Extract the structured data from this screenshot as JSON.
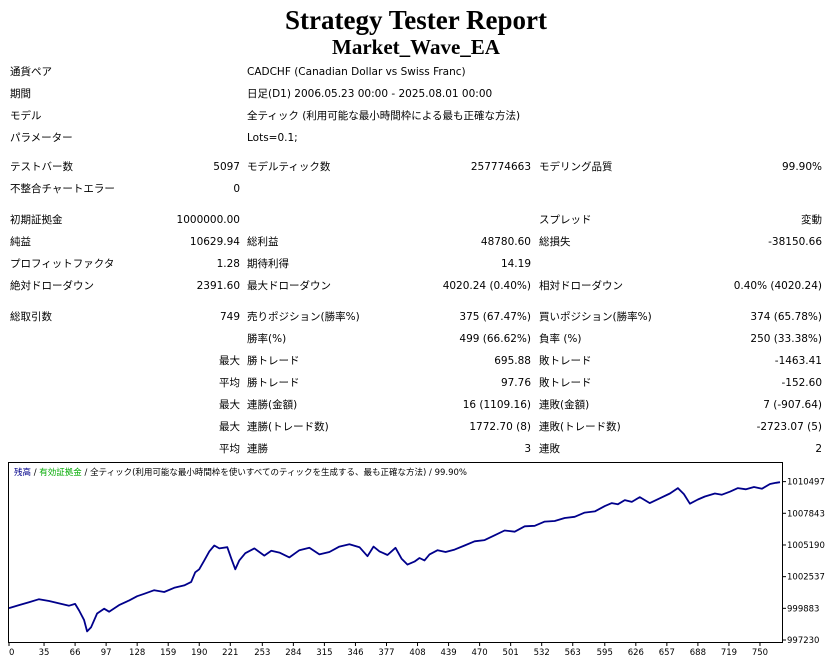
{
  "header": {
    "title": "Strategy Tester Report",
    "ea_name": "Market_Wave_EA"
  },
  "info": [
    {
      "label": "通貨ペア",
      "value": "CADCHF (Canadian Dollar vs Swiss Franc)"
    },
    {
      "label": "期間",
      "value": "日足(D1) 2006.05.23 00:00 - 2025.08.01 00:00"
    },
    {
      "label": "モデル",
      "value": "全ティック (利用可能な最小時間枠による最も正確な方法)"
    },
    {
      "label": "パラメーター",
      "value": "Lots=0.1;"
    }
  ],
  "stats": {
    "bars_label": "テストバー数",
    "bars": "5097",
    "ticks_label": "モデルティック数",
    "ticks": "257774663",
    "quality_label": "モデリング品質",
    "quality": "99.90%",
    "mismatch_label": "不整合チャートエラー",
    "mismatch": "0",
    "deposit_label": "初期証拠金",
    "deposit": "1000000.00",
    "spread_label": "スプレッド",
    "spread": "変動",
    "net_label": "純益",
    "net": "10629.94",
    "gross_profit_label": "総利益",
    "gross_profit": "48780.60",
    "gross_loss_label": "総損失",
    "gross_loss": "-38150.66",
    "pf_label": "プロフィットファクタ",
    "pf": "1.28",
    "payoff_label": "期待利得",
    "payoff": "14.19",
    "abs_dd_label": "絶対ドローダウン",
    "abs_dd": "2391.60",
    "max_dd_label": "最大ドローダウン",
    "max_dd": "4020.24 (0.40%)",
    "rel_dd_label": "相対ドローダウン",
    "rel_dd": "0.40% (4020.24)",
    "total_label": "総取引数",
    "total": "749",
    "short_label": "売りポジション(勝率%)",
    "short": "375 (67.47%)",
    "long_label": "買いポジション(勝率%)",
    "long": "374 (65.78%)",
    "win_pct_label": "勝率(%)",
    "win_pct": "499 (66.62%)",
    "loss_pct_label": "負率 (%)",
    "loss_pct": "250 (33.38%)",
    "largest_label": "最大",
    "largest_win_label": "勝トレード",
    "largest_win": "695.88",
    "largest_loss_label": "敗トレード",
    "largest_loss": "-1463.41",
    "avg_label": "平均",
    "avg_win_label": "勝トレード",
    "avg_win": "97.76",
    "avg_loss_label": "敗トレード",
    "avg_loss": "-152.60",
    "max_cons_label": "最大",
    "max_cons_win_label": "連勝(金額)",
    "max_cons_win": "16 (1109.16)",
    "max_cons_loss_label": "連敗(金額)",
    "max_cons_loss": "7 (-907.64)",
    "max_consp_label": "最大",
    "max_consp_win_label": "連勝(トレード数)",
    "max_consp_win": "1772.70 (8)",
    "max_consp_loss_label": "連敗(トレード数)",
    "max_consp_loss": "-2723.07 (5)",
    "avg_cons_label": "平均",
    "avg_cons_win_label": "連勝",
    "avg_cons_win": "3",
    "avg_cons_loss_label": "連敗",
    "avg_cons_loss": "2"
  },
  "chart_data": {
    "type": "line",
    "legend": {
      "balance": "残高",
      "sep1": " / ",
      "equity": "有効証拠金",
      "sep2": " / ",
      "model": "全ティック(利用可能な最小時間枠を使いすべてのティックを生成する、最も正確な方法)",
      "sep3": " / ",
      "quality": "99.90%"
    },
    "x_ticks": [
      0,
      35,
      66,
      97,
      128,
      159,
      190,
      221,
      253,
      284,
      315,
      346,
      377,
      408,
      439,
      470,
      501,
      532,
      563,
      595,
      626,
      657,
      688,
      719,
      750
    ],
    "y_ticks": [
      997230,
      999883,
      1002537,
      1005190,
      1007843,
      1010497
    ],
    "xlim": [
      0,
      770
    ],
    "ylim": [
      997230,
      1010800
    ],
    "colors": {
      "balance": "#00008b",
      "equity": "#00aa00",
      "axis": "#000000"
    },
    "series": [
      {
        "x": [
          0,
          10,
          20,
          30,
          40,
          50,
          60,
          66,
          70,
          75,
          78,
          82,
          88,
          95,
          100,
          110,
          120,
          128,
          135,
          145,
          155,
          165,
          175,
          182,
          186,
          190,
          195,
          200,
          205,
          210,
          218,
          222,
          226,
          230,
          236,
          245,
          255,
          262,
          270,
          280,
          290,
          300,
          310,
          320,
          330,
          340,
          350,
          358,
          364,
          370,
          378,
          386,
          392,
          398,
          405,
          410,
          415,
          420,
          428,
          436,
          445,
          455,
          465,
          475,
          485,
          495,
          505,
          515,
          525,
          535,
          545,
          555,
          565,
          575,
          585,
          595,
          602,
          608,
          615,
          622,
          630,
          640,
          650,
          660,
          668,
          674,
          680,
          688,
          695,
          705,
          712,
          720,
          728,
          736,
          744,
          752,
          760,
          766,
          770
        ],
        "y": [
          999900,
          1000150,
          1000400,
          1000650,
          1000500,
          1000300,
          1000100,
          1000250,
          999700,
          998900,
          997950,
          998300,
          999450,
          999850,
          999600,
          1000150,
          1000550,
          1000900,
          1001100,
          1001400,
          1001250,
          1001600,
          1001800,
          1002100,
          1002900,
          1003150,
          1003900,
          1004650,
          1005150,
          1004900,
          1005000,
          1004050,
          1003150,
          1003900,
          1004500,
          1004900,
          1004300,
          1004700,
          1004550,
          1004150,
          1004750,
          1004950,
          1004400,
          1004600,
          1005050,
          1005250,
          1005000,
          1004250,
          1005050,
          1004650,
          1004350,
          1004950,
          1004050,
          1003550,
          1003800,
          1004100,
          1003900,
          1004400,
          1004750,
          1004600,
          1004800,
          1005150,
          1005500,
          1005600,
          1006000,
          1006400,
          1006300,
          1006750,
          1006800,
          1007150,
          1007200,
          1007450,
          1007550,
          1007900,
          1008000,
          1008450,
          1008700,
          1008600,
          1008950,
          1008800,
          1009200,
          1008700,
          1009100,
          1009500,
          1009950,
          1009450,
          1008650,
          1009000,
          1009250,
          1009500,
          1009400,
          1009650,
          1009950,
          1009850,
          1010050,
          1009900,
          1010300,
          1010400,
          1010450
        ]
      }
    ]
  }
}
